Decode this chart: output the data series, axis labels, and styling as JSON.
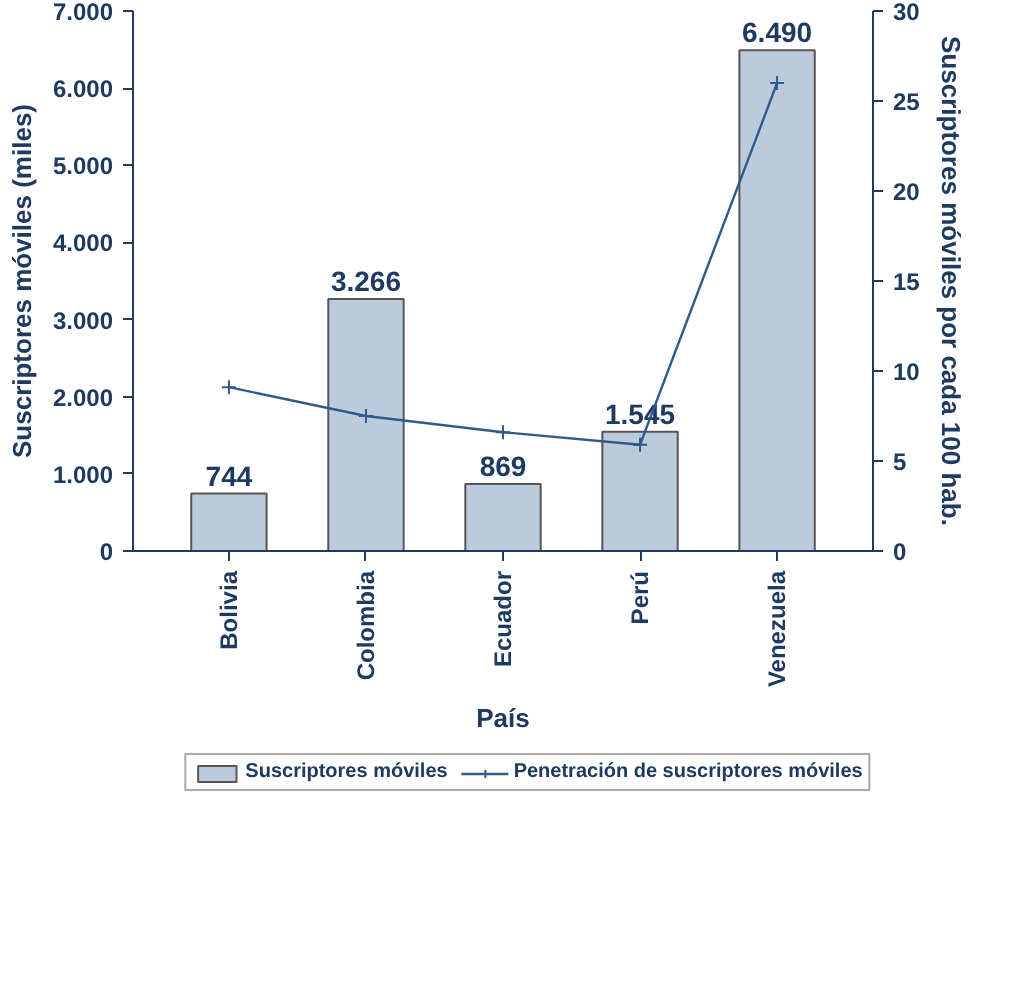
{
  "chart_data": {
    "type": "bar",
    "categories": [
      "Bolivia",
      "Colombia",
      "Ecuador",
      "Perú",
      "Venezuela"
    ],
    "xlabel": "País",
    "ylabel": "Suscriptores móviles (miles)",
    "y2label": "Suscriptores móviles por cada 100 hab.",
    "series": [
      {
        "name": "Suscriptores móviles",
        "color": "#bccbdc",
        "values": [
          744,
          3266,
          869,
          1545,
          6490
        ],
        "value_labels": [
          "744",
          "3.266",
          "869",
          "1.545",
          "6.490"
        ]
      },
      {
        "name": "Penetración de suscriptores móviles",
        "type": "line",
        "axis": "y2",
        "color": "#2f5a8a",
        "marker": "cross",
        "values": [
          9.1,
          7.5,
          6.6,
          5.9,
          26.0
        ]
      }
    ],
    "ylim": [
      0,
      7000
    ],
    "yticks": [
      {
        "value": 0,
        "label": "0"
      },
      {
        "value": 1000,
        "label": "1.000"
      },
      {
        "value": 2000,
        "label": "2.000"
      },
      {
        "value": 3000,
        "label": "3.000"
      },
      {
        "value": 4000,
        "label": "4.000"
      },
      {
        "value": 5000,
        "label": "5.000"
      },
      {
        "value": 6000,
        "label": "6.000"
      },
      {
        "value": 7000,
        "label": "7.000"
      }
    ],
    "y2lim": [
      0,
      30
    ],
    "y2ticks": [
      0,
      5,
      10,
      15,
      20,
      25,
      30
    ],
    "grid": false,
    "legend": "bottom"
  }
}
